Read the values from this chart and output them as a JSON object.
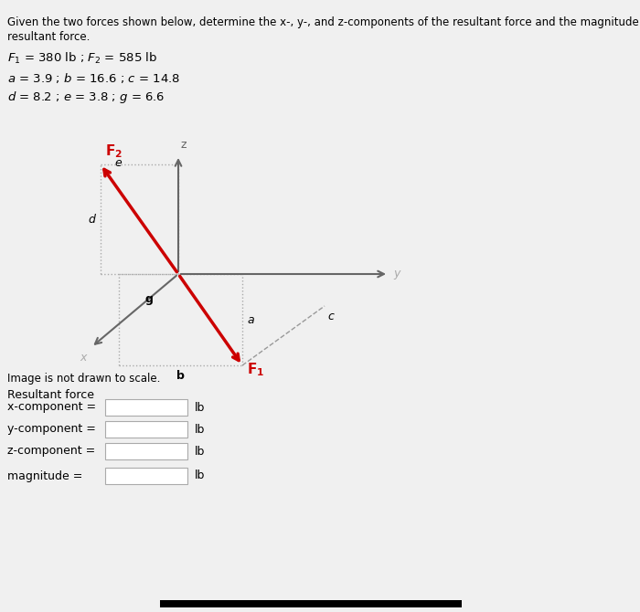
{
  "title_text": "Given the two forces shown below, determine the x-, y-, and z-components of the resultant force and the magnitude of the",
  "title_text2": "resultant force.",
  "note": "Image is not drawn to scale.",
  "resultant_label": "Resultant force",
  "x_comp_label": "x-component =",
  "y_comp_label": "y-component =",
  "z_comp_label": "z-component =",
  "mag_label": "magnitude =",
  "unit": "lb",
  "bg_color": "#f0f0f0",
  "arrow_color": "#cc0000",
  "axis_color": "#666666",
  "dot_color": "#aaaaaa",
  "dash_color": "#999999",
  "text_color": "#000000",
  "gray_text": "#aaaaaa"
}
